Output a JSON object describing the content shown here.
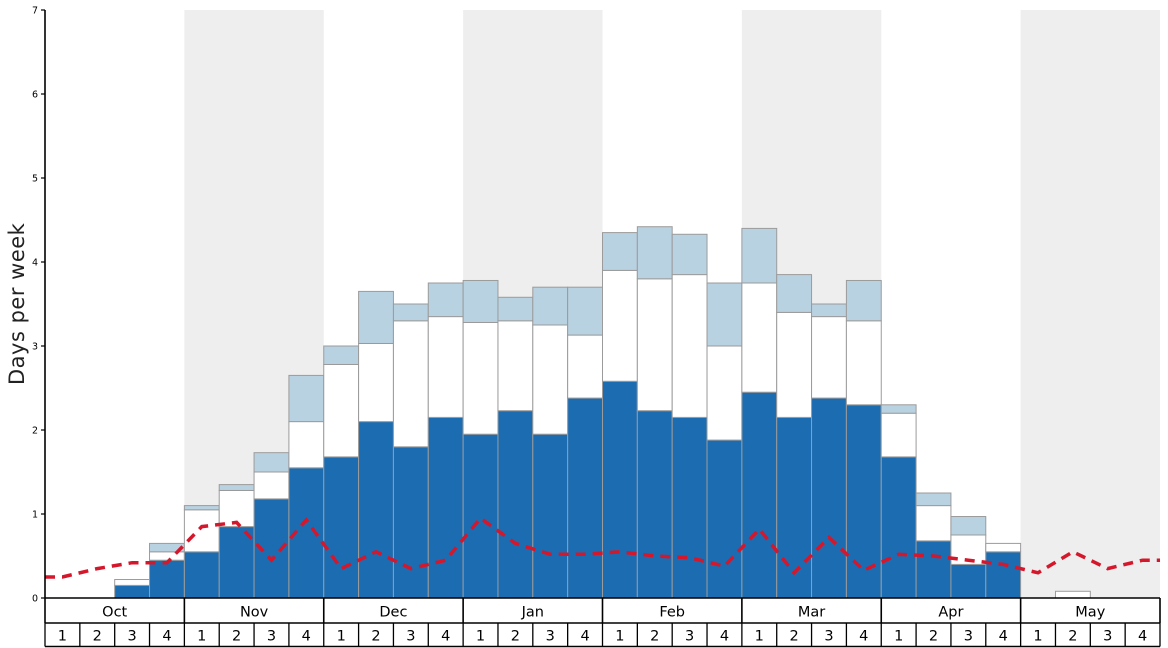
{
  "chart_data": {
    "type": "bar",
    "subtype": "stacked-bars-with-dashed-line",
    "title": "",
    "ylabel": "Days per week",
    "xlabel": "",
    "ylim": [
      0,
      7
    ],
    "yticks": [
      0,
      1,
      2,
      3,
      4,
      5,
      6,
      7
    ],
    "grid": false,
    "months": [
      "Oct",
      "Nov",
      "Dec",
      "Jan",
      "Feb",
      "Mar",
      "Apr",
      "May"
    ],
    "weeks_per_month": 4,
    "week_labels": [
      "1",
      "2",
      "3",
      "4"
    ],
    "shaded_months": [
      "Nov",
      "Jan",
      "Mar",
      "May"
    ],
    "colors": {
      "band": "#eeeeee",
      "axis": "#000000",
      "bar_border": "#9b9b9b",
      "dark_blue": "#1c6cb2",
      "white": "#ffffff",
      "light_blue": "#b9d2e2",
      "red_line": "#d5172b"
    },
    "series": [
      {
        "name": "dark-blue-bottom",
        "color": "#1c6cb2",
        "values": [
          0,
          0,
          0.15,
          0.45,
          0.55,
          0.85,
          1.18,
          1.55,
          1.68,
          2.1,
          1.8,
          2.15,
          1.95,
          2.23,
          1.95,
          2.38,
          2.58,
          2.23,
          2.15,
          1.88,
          2.45,
          2.15,
          2.38,
          2.3,
          1.68,
          0.68,
          0.4,
          0.55,
          0,
          0,
          0,
          0
        ]
      },
      {
        "name": "white-middle",
        "color": "#ffffff",
        "values": [
          0,
          0,
          0.07,
          0.1,
          0.5,
          0.43,
          0.32,
          0.55,
          1.1,
          0.93,
          1.5,
          1.2,
          1.33,
          1.07,
          1.3,
          0.75,
          1.32,
          1.57,
          1.7,
          1.12,
          1.3,
          1.25,
          0.97,
          1.0,
          0.52,
          0.42,
          0.35,
          0.1,
          0,
          0.08,
          0,
          0
        ]
      },
      {
        "name": "light-blue-top",
        "color": "#b9d2e2",
        "values": [
          0,
          0,
          0,
          0.1,
          0.05,
          0.07,
          0.23,
          0.55,
          0.22,
          0.62,
          0.2,
          0.4,
          0.5,
          0.28,
          0.45,
          0.57,
          0.45,
          0.62,
          0.48,
          0.75,
          0.65,
          0.45,
          0.15,
          0.48,
          0.1,
          0.15,
          0.22,
          0,
          0,
          0,
          0,
          0
        ]
      }
    ],
    "line": {
      "name": "red-dashed-line",
      "color": "#d5172b",
      "style": "dashed",
      "values": [
        0.25,
        0.35,
        0.42,
        0.42,
        0.85,
        0.9,
        0.45,
        0.93,
        0.35,
        0.55,
        0.35,
        0.45,
        0.95,
        0.65,
        0.52,
        0.52,
        0.55,
        0.5,
        0.48,
        0.38,
        0.82,
        0.3,
        0.72,
        0.33,
        0.52,
        0.5,
        0.45,
        0.4,
        0.3,
        0.55,
        0.35,
        0.45
      ]
    }
  }
}
